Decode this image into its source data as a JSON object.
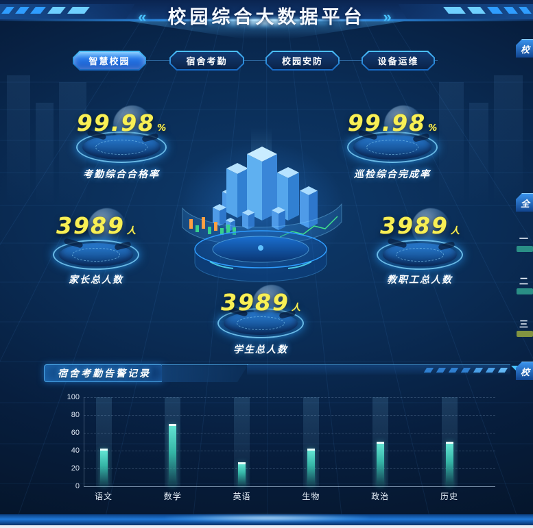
{
  "header": {
    "title": "校园综合大数据平台",
    "left_deco": "«",
    "right_deco": "»"
  },
  "tabs": [
    {
      "label": "智慧校园",
      "active": true
    },
    {
      "label": "宿舍考勤",
      "active": false
    },
    {
      "label": "校园安防",
      "active": false
    },
    {
      "label": "设备运维",
      "active": false
    }
  ],
  "stats": [
    {
      "value": "99.98",
      "unit": "%",
      "label": "考勤综合合格率"
    },
    {
      "value": "99.98",
      "unit": "%",
      "label": "巡检综合完成率"
    },
    {
      "value": "3989",
      "unit": "人",
      "label": "家长总人数"
    },
    {
      "value": "3989",
      "unit": "人",
      "label": "教职工总人数"
    },
    {
      "value": "3989",
      "unit": "人",
      "label": "学生总人数"
    }
  ],
  "alarm_panel": {
    "title": "宿舍考勤告警记录"
  },
  "chart_data": {
    "type": "bar",
    "title": "宿舍考勤告警记录",
    "categories": [
      "语文",
      "数学",
      "英语",
      "生物",
      "政治",
      "历史"
    ],
    "values": [
      42,
      70,
      27,
      42,
      50,
      50
    ],
    "xlabel": "",
    "ylabel": "",
    "ylim": [
      0,
      100
    ],
    "yticks": [
      0,
      20,
      40,
      60,
      80,
      100
    ],
    "grid": true,
    "legend_position": "none",
    "bar_color": "#49d6c4"
  },
  "right_edge": {
    "top_tab": "校",
    "mid_tab": "全",
    "bottom_tab": "校",
    "rank_items": [
      {
        "label": "一",
        "bar_color": "#2f9a8c"
      },
      {
        "label": "二",
        "bar_color": "#2f9a8c"
      },
      {
        "label": "三",
        "bar_color": "#8fa03f"
      }
    ]
  },
  "colors": {
    "accent_cyan": "#35c3ff",
    "number_yellow": "#f8ef55",
    "bar_teal": "#49d6c4",
    "active_tab_blue": "#2e86ff"
  }
}
